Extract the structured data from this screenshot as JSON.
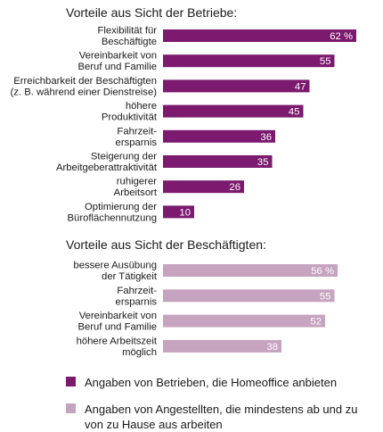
{
  "colors": {
    "employers": "#7b1a6e",
    "employees": "#c6a3bf",
    "value_text": "#ffffff"
  },
  "chart_data": [
    {
      "type": "bar",
      "orientation": "horizontal",
      "title": "Vorteile aus Sicht der Betriebe:",
      "categories": [
        [
          "Flexibilität für",
          "Beschäftigte"
        ],
        [
          "Vereinbarkeit von",
          "Beruf und Familie"
        ],
        [
          "Erreichbarkeit der Beschäftigten",
          "(z. B. während einer Dienstreise)"
        ],
        [
          "höhere",
          "Produktivität"
        ],
        [
          "Fahrzeit-",
          "ersparnis"
        ],
        [
          "Steigerung der",
          "Arbeitgeberattraktivität"
        ],
        [
          "ruhigerer",
          "Arbeitsort"
        ],
        [
          "Optimierung der",
          "Büroflächennutzung"
        ]
      ],
      "values": [
        62,
        55,
        47,
        45,
        36,
        35,
        26,
        10
      ],
      "value_labels": [
        "62 %",
        "55",
        "47",
        "45",
        "36",
        "35",
        "26",
        "10"
      ],
      "unit": "%",
      "xlim": [
        0,
        62
      ],
      "series": [
        {
          "name": "Angaben von Betrieben, die Homeoffice anbieten",
          "color": "#7b1a6e"
        }
      ]
    },
    {
      "type": "bar",
      "orientation": "horizontal",
      "title": "Vorteile aus Sicht der Beschäftigten:",
      "categories": [
        [
          "bessere Ausübung",
          "der Tätigkeit"
        ],
        [
          "Fahrzeit-",
          "ersparnis"
        ],
        [
          "Vereinbarkeit von",
          "Beruf und Familie"
        ],
        [
          "höhere Arbeitszeit",
          "möglich"
        ]
      ],
      "values": [
        56,
        55,
        52,
        38
      ],
      "value_labels": [
        "56 %",
        "55",
        "52",
        "38"
      ],
      "unit": "%",
      "xlim": [
        0,
        62
      ],
      "series": [
        {
          "name": "Angaben von Angestellten, die mindestens ab und zu von zu Hause aus arbeiten",
          "color": "#c6a3bf"
        }
      ]
    }
  ],
  "legend": [
    {
      "label": "Angaben von Betrieben, die Homeoffice anbieten",
      "color": "#7b1a6e"
    },
    {
      "label": "Angaben von Angestellten, die mindestens ab und zu von zu Hause aus arbeiten",
      "color": "#c6a3bf"
    }
  ]
}
